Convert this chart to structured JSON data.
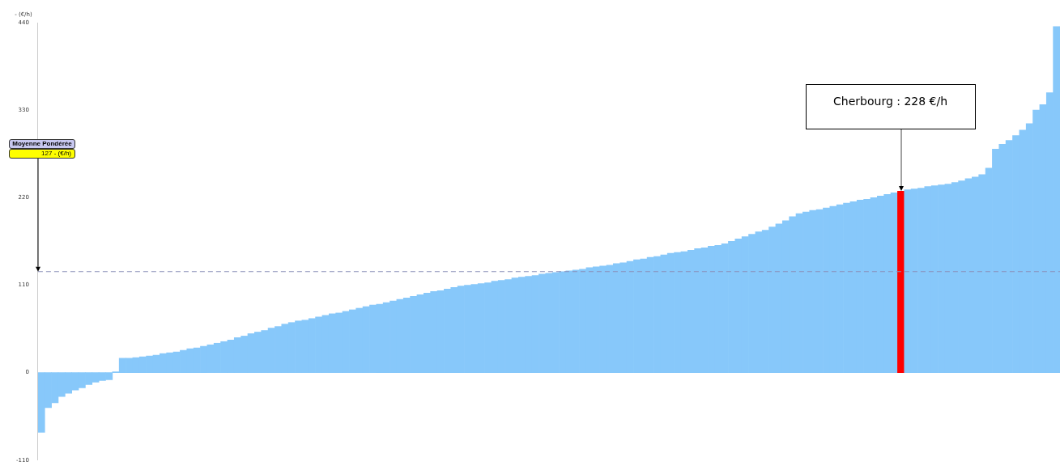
{
  "chart_data": {
    "type": "bar",
    "ylabel": "- (€/h)",
    "categories": [
      null,
      null,
      null,
      null,
      null,
      null,
      null,
      null,
      null,
      null,
      null,
      null,
      null,
      null,
      null,
      null,
      null,
      null,
      null,
      null,
      null,
      null,
      null,
      null,
      null,
      null,
      null,
      null,
      null,
      null,
      null,
      null,
      null,
      null,
      null,
      null,
      null,
      null,
      null,
      null,
      null,
      null,
      null,
      null,
      null,
      null,
      null,
      null,
      null,
      null,
      null,
      null,
      null,
      null,
      null,
      null,
      null,
      null,
      null,
      null,
      null,
      null,
      null,
      null,
      null,
      null,
      null,
      null,
      null,
      null,
      null,
      null,
      null,
      null,
      null,
      null,
      null,
      null,
      null,
      null,
      null,
      null,
      null,
      null,
      null,
      null,
      null,
      null,
      null,
      null,
      null,
      null,
      null,
      null,
      null,
      null,
      null,
      null,
      null,
      null,
      null,
      null,
      null,
      null,
      null,
      null,
      null,
      null,
      null,
      null,
      null,
      null,
      null,
      null,
      null,
      null,
      null,
      null,
      null,
      null,
      null,
      null,
      null,
      null,
      null,
      null,
      null,
      null,
      null,
      null,
      null,
      null,
      null,
      null,
      null,
      null,
      null,
      null,
      null,
      null,
      null,
      null,
      null,
      null,
      null,
      null,
      null,
      null,
      null,
      null,
      null
    ],
    "values": [
      -75,
      -44,
      -38,
      -30,
      -26,
      -22,
      -19,
      -15,
      -12,
      -10,
      -9,
      1,
      18,
      18,
      19,
      20,
      21,
      22,
      24,
      25,
      26,
      28,
      30,
      31,
      33,
      35,
      37,
      39,
      41,
      44,
      46,
      49,
      51,
      53,
      56,
      58,
      61,
      63,
      65,
      66,
      68,
      70,
      72,
      74,
      75,
      77,
      79,
      81,
      83,
      85,
      86,
      88,
      90,
      92,
      94,
      96,
      98,
      100,
      102,
      103,
      105,
      107,
      109,
      110,
      111,
      112,
      113,
      115,
      116,
      117,
      119,
      120,
      121,
      122,
      124,
      125,
      126,
      127,
      128,
      129,
      130,
      132,
      133,
      134,
      135,
      137,
      138,
      140,
      142,
      143,
      145,
      146,
      148,
      150,
      151,
      152,
      154,
      156,
      157,
      159,
      160,
      162,
      165,
      168,
      171,
      174,
      177,
      179,
      183,
      187,
      191,
      196,
      200,
      202,
      204,
      205,
      207,
      209,
      211,
      213,
      215,
      217,
      218,
      220,
      222,
      224,
      226,
      228,
      230,
      231,
      232,
      234,
      235,
      236,
      237,
      239,
      241,
      244,
      246,
      249,
      257,
      281,
      287,
      292,
      298,
      305,
      313,
      330,
      337,
      352,
      435
    ],
    "colors": [
      "#87c8fa",
      "#87c8fa",
      "#87c8fa",
      "#87c8fa",
      "#87c8fa",
      "#87c8fa",
      "#87c8fa",
      "#87c8fa",
      "#87c8fa",
      "#87c8fa",
      "#87c8fa",
      "#87c8fa",
      "#87c8fa",
      "#87c8fa",
      "#87c8fa",
      "#87c8fa",
      "#87c8fa",
      "#87c8fa",
      "#87c8fa",
      "#87c8fa",
      "#87c8fa",
      "#87c8fa",
      "#87c8fa",
      "#87c8fa",
      "#87c8fa",
      "#87c8fa",
      "#87c8fa",
      "#87c8fa",
      "#87c8fa",
      "#87c8fa",
      "#87c8fa",
      "#87c8fa",
      "#87c8fa",
      "#87c8fa",
      "#87c8fa",
      "#87c8fa",
      "#87c8fa",
      "#87c8fa",
      "#87c8fa",
      "#87c8fa",
      "#87c8fa",
      "#87c8fa",
      "#87c8fa",
      "#87c8fa",
      "#87c8fa",
      "#87c8fa",
      "#87c8fa",
      "#87c8fa",
      "#87c8fa",
      "#87c8fa",
      "#87c8fa",
      "#87c8fa",
      "#87c8fa",
      "#87c8fa",
      "#87c8fa",
      "#87c8fa",
      "#87c8fa",
      "#87c8fa",
      "#87c8fa",
      "#87c8fa",
      "#87c8fa",
      "#87c8fa",
      "#87c8fa",
      "#87c8fa",
      "#87c8fa",
      "#87c8fa",
      "#87c8fa",
      "#87c8fa",
      "#87c8fa",
      "#87c8fa",
      "#87c8fa",
      "#87c8fa",
      "#87c8fa",
      "#87c8fa",
      "#87c8fa",
      "#87c8fa",
      "#87c8fa",
      "#87c8fa",
      "#87c8fa",
      "#87c8fa",
      "#87c8fa",
      "#87c8fa",
      "#87c8fa",
      "#87c8fa",
      "#87c8fa",
      "#87c8fa",
      "#87c8fa",
      "#87c8fa",
      "#87c8fa",
      "#87c8fa",
      "#87c8fa",
      "#87c8fa",
      "#87c8fa",
      "#87c8fa",
      "#87c8fa",
      "#87c8fa",
      "#87c8fa",
      "#87c8fa",
      "#87c8fa",
      "#87c8fa",
      "#87c8fa",
      "#87c8fa",
      "#87c8fa",
      "#87c8fa",
      "#87c8fa",
      "#87c8fa",
      "#87c8fa",
      "#87c8fa",
      "#87c8fa",
      "#87c8fa",
      "#87c8fa",
      "#87c8fa",
      "#87c8fa",
      "#87c8fa",
      "#87c8fa",
      "#87c8fa",
      "#87c8fa",
      "#87c8fa",
      "#87c8fa",
      "#87c8fa",
      "#87c8fa",
      "#87c8fa",
      "#87c8fa",
      "#87c8fa",
      "#87c8fa",
      "#87c8fa",
      "#87c8fa",
      "#ff0000",
      "#87c8fa",
      "#87c8fa",
      "#87c8fa",
      "#87c8fa",
      "#87c8fa",
      "#87c8fa",
      "#87c8fa",
      "#87c8fa",
      "#87c8fa",
      "#87c8fa",
      "#87c8fa",
      "#87c8fa",
      "#87c8fa",
      "#87c8fa",
      "#87c8fa",
      "#87c8fa",
      "#87c8fa",
      "#87c8fa",
      "#87c8fa",
      "#87c8fa",
      "#87c8fa",
      "#87c8fa",
      "#87c8fa"
    ],
    "ylim": [
      -110,
      440
    ],
    "yticks": [
      -110,
      0,
      110,
      220,
      330,
      440
    ],
    "ref_lines": [
      {
        "axis": "y",
        "value": 127,
        "color": "#8a8fb8",
        "line_style": "dashed"
      }
    ],
    "annotations": [
      "Cherbourg : 228 €/h",
      "Moyenne Pondérée",
      "127 - (€/h)"
    ],
    "grid": false,
    "legend": false
  }
}
